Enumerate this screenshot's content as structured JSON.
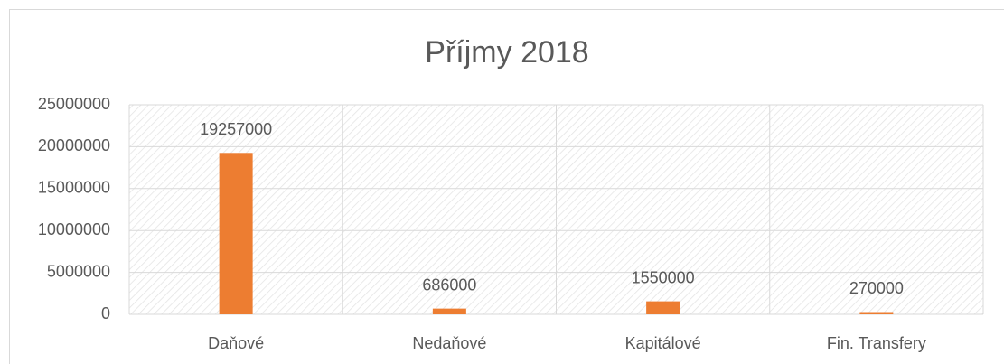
{
  "chart_data": {
    "type": "bar",
    "title": "Příjmy 2018",
    "categories": [
      "Daňové",
      "Nedaňové",
      "Kapitálové",
      "Fin. Transfery"
    ],
    "values": [
      19257000,
      686000,
      1550000,
      270000
    ],
    "color": "#ed7d31",
    "ylim": [
      0,
      25000000
    ],
    "yticks": [
      0,
      5000000,
      10000000,
      15000000,
      20000000,
      25000000
    ],
    "grid": true
  }
}
